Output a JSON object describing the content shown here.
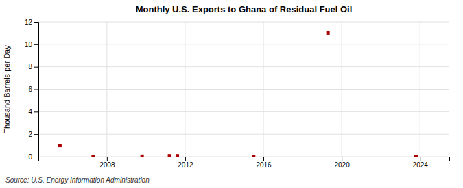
{
  "chart_data": {
    "type": "scatter",
    "title": "Monthly U.S. Exports to Ghana of Residual Fuel Oil",
    "ylabel": "Thousand Barrels per Day",
    "annotations": [
      "Source: U.S. Energy Information Administration"
    ],
    "x": [
      2005.6,
      2007.3,
      2009.8,
      2011.2,
      2011.6,
      2015.5,
      2019.3,
      2023.8
    ],
    "values": [
      1.0,
      0.02,
      0.04,
      0.08,
      0.08,
      0.02,
      11.0,
      0.02
    ],
    "color": "#aa0000",
    "marker": "square",
    "xlim": [
      2004.5,
      2025.5
    ],
    "ylim": [
      0,
      12
    ],
    "xticks": [
      2008,
      2012,
      2016,
      2020,
      2024
    ],
    "yticks": [
      0,
      2,
      4,
      6,
      8,
      10,
      12
    ],
    "grid": true
  }
}
